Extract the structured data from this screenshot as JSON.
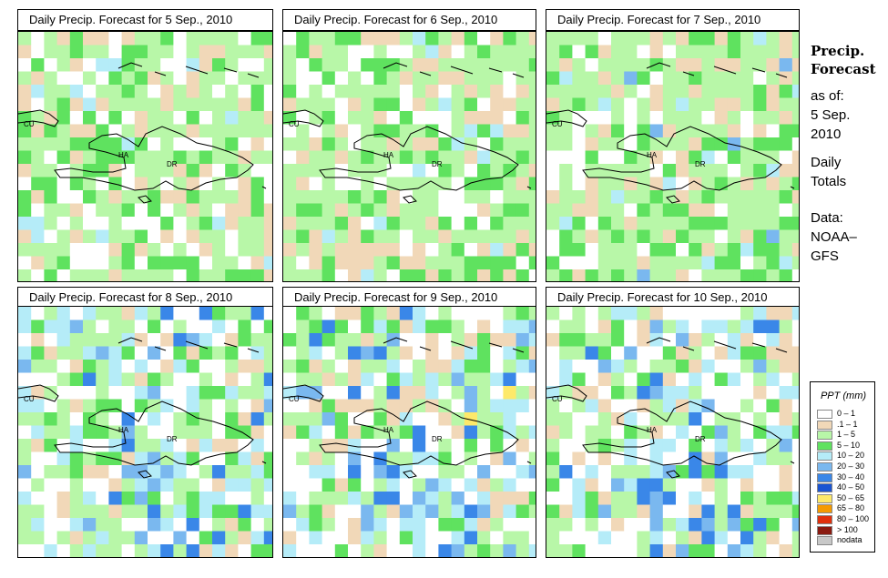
{
  "panels": [
    {
      "title": "Daily Precip. Forecast for  5 Sep., 2010",
      "variant": 0
    },
    {
      "title": "Daily Precip. Forecast for  6 Sep., 2010",
      "variant": 1
    },
    {
      "title": "Daily Precip. Forecast for  7 Sep., 2010",
      "variant": 2
    },
    {
      "title": "Daily Precip. Forecast for  8 Sep., 2010",
      "variant": 3
    },
    {
      "title": "Daily Precip. Forecast for  9 Sep., 2010",
      "variant": 4
    },
    {
      "title": "Daily Precip. Forecast for  10 Sep., 2010",
      "variant": 5
    }
  ],
  "map_labels": {
    "cu": "CU",
    "ha": "HA",
    "dr": "DR"
  },
  "sidebar": {
    "title_line1": "Precip.",
    "title_line2": "Forecast",
    "as_of": "as of:",
    "date_line1": "5 Sep.",
    "date_line2": "2010",
    "totals_line1": "Daily",
    "totals_line2": "Totals",
    "data_line1": "Data:",
    "data_line2": "NOAA–",
    "data_line3": "GFS"
  },
  "legend": {
    "title": "PPT (mm)",
    "items": [
      {
        "label": "0 – 1",
        "color": "#ffffff"
      },
      {
        "label": ".1 – 1",
        "color": "#f1d8b8"
      },
      {
        "label": "1 – 5",
        "color": "#b8f7a8"
      },
      {
        "label": "5 – 10",
        "color": "#5fe25f"
      },
      {
        "label": "10 – 20",
        "color": "#b5ecf8"
      },
      {
        "label": "20 – 30",
        "color": "#7ab8ef"
      },
      {
        "label": "30 – 40",
        "color": "#3a87e8"
      },
      {
        "label": "40 – 50",
        "color": "#1a55d2"
      },
      {
        "label": "50 – 65",
        "color": "#fde96a"
      },
      {
        "label": "65 – 80",
        "color": "#f59a00"
      },
      {
        "label": "80 – 100",
        "color": "#e0300c"
      },
      {
        "label": "> 100",
        "color": "#8a1a10"
      },
      {
        "label": "nodata",
        "color": "#c8c8c8"
      }
    ]
  }
}
